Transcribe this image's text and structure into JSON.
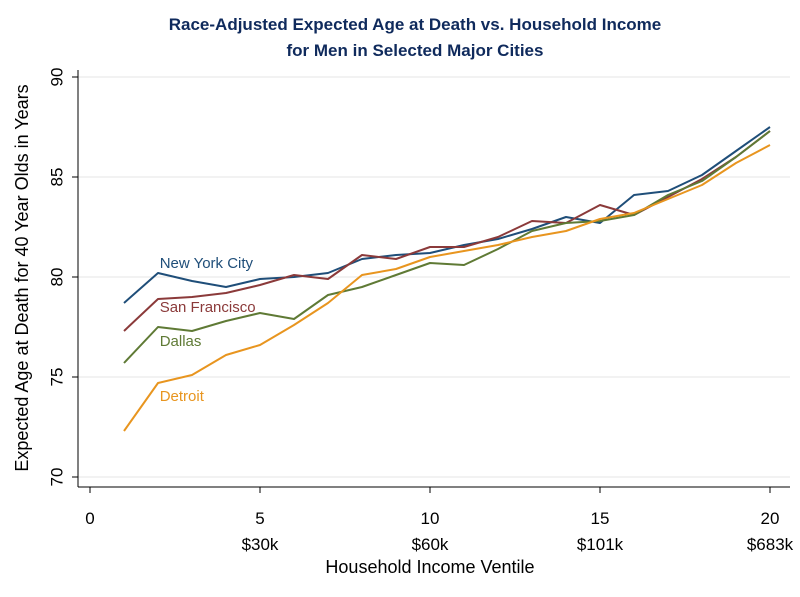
{
  "chart_data": {
    "type": "line",
    "title": "Race-Adjusted Expected Age at Death vs. Household Income",
    "subtitle": "for Men in Selected Major Cities",
    "xlabel": "Household Income Ventile",
    "ylabel": "Expected Age at Death for 40 Year Olds in Years",
    "xlim": [
      0,
      20
    ],
    "ylim": [
      70,
      90
    ],
    "xticks": [
      {
        "value": 0,
        "label": "0",
        "income": ""
      },
      {
        "value": 5,
        "label": "5",
        "income": "$30k"
      },
      {
        "value": 10,
        "label": "10",
        "income": "$60k"
      },
      {
        "value": 15,
        "label": "15",
        "income": "$101k"
      },
      {
        "value": 20,
        "label": "20",
        "income": "$683k"
      }
    ],
    "yticks": [
      70,
      75,
      80,
      85,
      90
    ],
    "x": [
      1,
      2,
      3,
      4,
      5,
      6,
      7,
      8,
      9,
      10,
      11,
      12,
      13,
      14,
      15,
      16,
      17,
      18,
      19,
      20
    ],
    "series": [
      {
        "name": "New York City",
        "color": "#1f4e79",
        "values": [
          78.7,
          80.2,
          79.8,
          79.5,
          79.9,
          80.0,
          80.2,
          80.9,
          81.1,
          81.2,
          81.6,
          81.9,
          82.4,
          83.0,
          82.7,
          84.1,
          84.3,
          85.1,
          86.3,
          87.5
        ]
      },
      {
        "name": "San Francisco",
        "color": "#8b3a3a",
        "values": [
          77.3,
          78.9,
          79.0,
          79.2,
          79.6,
          80.1,
          79.9,
          81.1,
          80.9,
          81.5,
          81.5,
          82.0,
          82.8,
          82.7,
          83.6,
          83.1,
          84.0,
          84.9,
          86.0,
          87.3
        ]
      },
      {
        "name": "Dallas",
        "color": "#5f7a35",
        "values": [
          75.7,
          77.5,
          77.3,
          77.8,
          78.2,
          77.9,
          79.1,
          79.5,
          80.1,
          80.7,
          80.6,
          81.4,
          82.3,
          82.7,
          82.8,
          83.1,
          84.1,
          84.8,
          86.0,
          87.3
        ]
      },
      {
        "name": "Detroit",
        "color": "#e8951f",
        "values": [
          72.3,
          74.7,
          75.1,
          76.1,
          76.6,
          77.6,
          78.7,
          80.1,
          80.4,
          81.0,
          81.3,
          81.6,
          82.0,
          82.3,
          82.9,
          83.2,
          83.9,
          84.6,
          85.7,
          86.6
        ]
      }
    ]
  }
}
